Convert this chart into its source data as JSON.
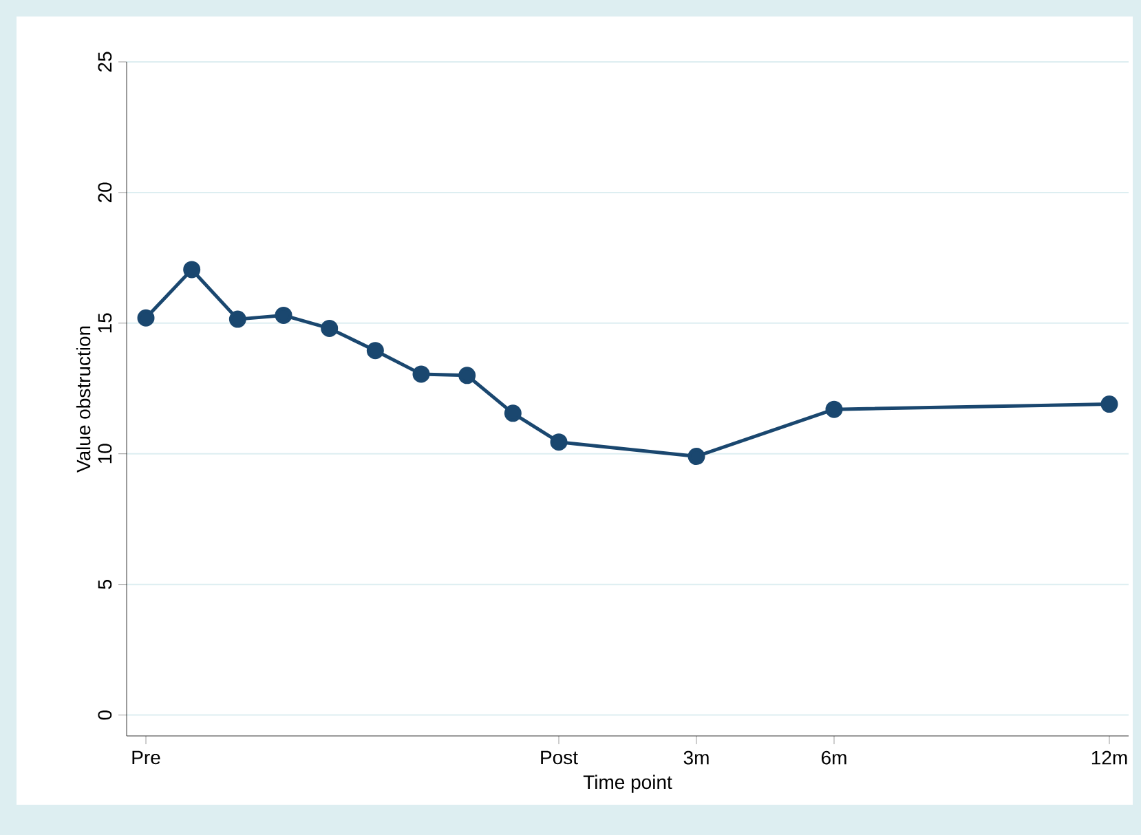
{
  "chart_data": {
    "type": "line",
    "xlabel": "Time point",
    "ylabel": "Value obstruction",
    "categories": [
      "Pre",
      null,
      null,
      null,
      null,
      null,
      null,
      null,
      null,
      "Post",
      null,
      null,
      "3m",
      null,
      null,
      "6m",
      null,
      null,
      null,
      null,
      null,
      "12m"
    ],
    "values": [
      15.2,
      17.05,
      15.15,
      15.3,
      14.8,
      13.95,
      13.05,
      13.0,
      11.55,
      10.45,
      null,
      null,
      9.9,
      null,
      null,
      11.7,
      null,
      null,
      null,
      null,
      null,
      11.9
    ],
    "color": "#1a476f",
    "ylim": [
      -0.8,
      25
    ],
    "yticks": [
      0,
      5,
      10,
      15,
      20,
      25
    ],
    "grid": "y",
    "marker": "circle",
    "line_style": "solid"
  }
}
